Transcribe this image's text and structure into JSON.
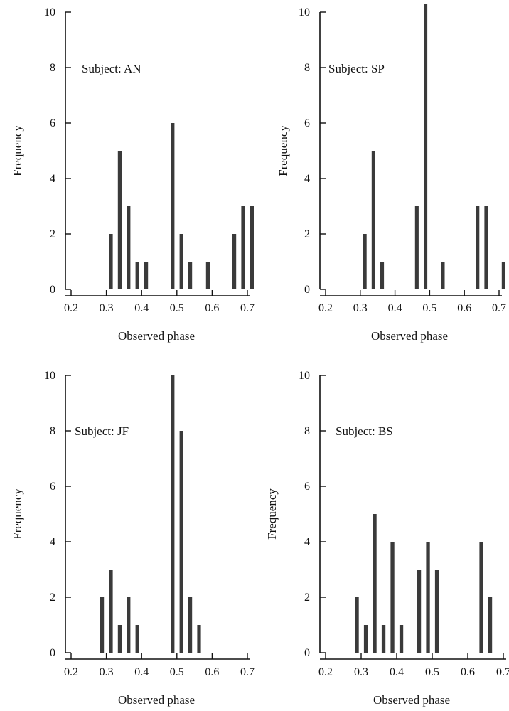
{
  "chart_data": [
    {
      "type": "bar",
      "subject_label": "Subject: AN",
      "xlabel": "Observed phase",
      "ylabel": "Frequency",
      "xlim": [
        0.2,
        0.7
      ],
      "ylim": [
        0,
        10
      ],
      "xticks": [
        "0.2",
        "0.3",
        "0.4",
        "0.5",
        "0.6",
        "0.7"
      ],
      "yticks": [
        "0",
        "2",
        "4",
        "6",
        "8",
        "10"
      ],
      "bin_width": 0.025,
      "bars": [
        {
          "x": 0.313,
          "y": 2
        },
        {
          "x": 0.338,
          "y": 5
        },
        {
          "x": 0.363,
          "y": 3
        },
        {
          "x": 0.388,
          "y": 1
        },
        {
          "x": 0.413,
          "y": 1
        },
        {
          "x": 0.488,
          "y": 6
        },
        {
          "x": 0.513,
          "y": 2
        },
        {
          "x": 0.538,
          "y": 1
        },
        {
          "x": 0.588,
          "y": 1
        },
        {
          "x": 0.663,
          "y": 2
        },
        {
          "x": 0.688,
          "y": 3
        },
        {
          "x": 0.713,
          "y": 3
        }
      ],
      "grid": false,
      "shade": "#3a3a3a"
    },
    {
      "type": "bar",
      "subject_label": "Subject: SP",
      "xlabel": "Observed phase",
      "ylabel": "Frequency",
      "xlim": [
        0.2,
        0.7
      ],
      "ylim": [
        0,
        10
      ],
      "xticks": [
        "0.2",
        "0.3",
        "0.4",
        "0.5",
        "0.6",
        "0.7"
      ],
      "yticks": [
        "0",
        "2",
        "4",
        "6",
        "8",
        "10"
      ],
      "bin_width": 0.025,
      "bars": [
        {
          "x": 0.313,
          "y": 2
        },
        {
          "x": 0.338,
          "y": 5
        },
        {
          "x": 0.363,
          "y": 1
        },
        {
          "x": 0.463,
          "y": 3
        },
        {
          "x": 0.488,
          "y": 10.3
        },
        {
          "x": 0.538,
          "y": 1
        },
        {
          "x": 0.638,
          "y": 3
        },
        {
          "x": 0.663,
          "y": 3
        },
        {
          "x": 0.713,
          "y": 1
        }
      ],
      "grid": false,
      "shade": "#2e2e2e"
    },
    {
      "type": "bar",
      "subject_label": "Subject: JF",
      "xlabel": "Observed phase",
      "ylabel": "Frequency",
      "xlim": [
        0.2,
        0.7
      ],
      "ylim": [
        0,
        10
      ],
      "xticks": [
        "0.2",
        "0.3",
        "0.4",
        "0.5",
        "0.6",
        "0.7"
      ],
      "yticks": [
        "0",
        "2",
        "4",
        "6",
        "8",
        "10"
      ],
      "bin_width": 0.025,
      "bars": [
        {
          "x": 0.288,
          "y": 2
        },
        {
          "x": 0.313,
          "y": 3
        },
        {
          "x": 0.338,
          "y": 1
        },
        {
          "x": 0.363,
          "y": 2
        },
        {
          "x": 0.388,
          "y": 1
        },
        {
          "x": 0.488,
          "y": 10
        },
        {
          "x": 0.513,
          "y": 8
        },
        {
          "x": 0.538,
          "y": 2
        },
        {
          "x": 0.563,
          "y": 1
        }
      ],
      "grid": false,
      "shade": "#353535"
    },
    {
      "type": "bar",
      "subject_label": "Subject: BS",
      "xlabel": "Observed phase",
      "ylabel": "Frequency",
      "xlim": [
        0.2,
        0.7
      ],
      "ylim": [
        0,
        10
      ],
      "xticks": [
        "0.2",
        "0.3",
        "0.4",
        "0.5",
        "0.6",
        "0.7"
      ],
      "yticks": [
        "0",
        "2",
        "4",
        "6",
        "8",
        "10"
      ],
      "bin_width": 0.025,
      "bars": [
        {
          "x": 0.288,
          "y": 2
        },
        {
          "x": 0.313,
          "y": 1
        },
        {
          "x": 0.338,
          "y": 5
        },
        {
          "x": 0.363,
          "y": 1
        },
        {
          "x": 0.388,
          "y": 4
        },
        {
          "x": 0.413,
          "y": 1
        },
        {
          "x": 0.463,
          "y": 3
        },
        {
          "x": 0.488,
          "y": 4
        },
        {
          "x": 0.513,
          "y": 3
        },
        {
          "x": 0.638,
          "y": 4
        },
        {
          "x": 0.663,
          "y": 2
        }
      ],
      "grid": false,
      "shade": "#3c3c3c"
    }
  ]
}
